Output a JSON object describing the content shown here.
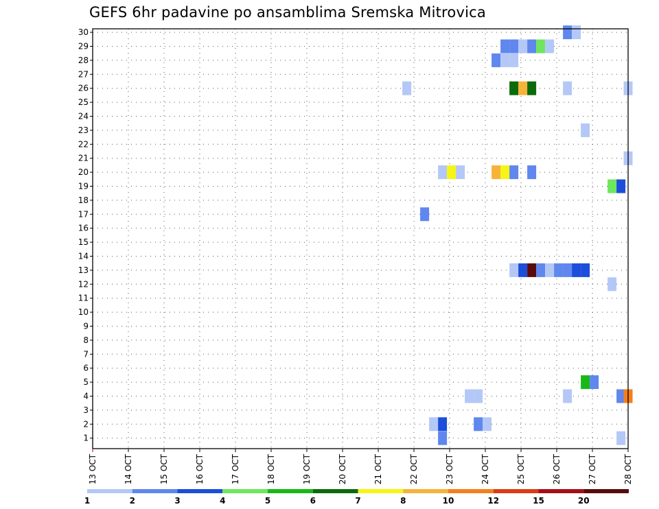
{
  "chart_data": {
    "type": "heatmap",
    "title": "GEFS 6hr padavine po ansamblima Sremska Mitrovica",
    "xlabel": "",
    "ylabel": "",
    "x_ticks": [
      "13 OCT",
      "14 OCT",
      "15 OCT",
      "16 OCT",
      "17 OCT",
      "18 OCT",
      "19 OCT",
      "20 OCT",
      "21 OCT",
      "22 OCT",
      "23 OCT",
      "24 OCT",
      "25 OCT",
      "26 OCT",
      "27 OCT",
      "28 OCT"
    ],
    "y_ticks": [
      "1",
      "2",
      "3",
      "4",
      "5",
      "6",
      "7",
      "8",
      "9",
      "10",
      "11",
      "12",
      "13",
      "14",
      "15",
      "16",
      "17",
      "18",
      "19",
      "20",
      "21",
      "22",
      "23",
      "24",
      "25",
      "26",
      "27",
      "28",
      "29",
      "30"
    ],
    "xlim": [
      0,
      15
    ],
    "ylim": [
      0.25,
      30.25
    ],
    "grid": true,
    "colorbar": {
      "labels": [
        "1",
        "2",
        "3",
        "4",
        "5",
        "6",
        "7",
        "8",
        "10",
        "12",
        "15",
        "20"
      ],
      "colors": [
        "#b4c8f7",
        "#5f87ee",
        "#1c4ddb",
        "#6ee65e",
        "#18b818",
        "#0b6b0b",
        "#f5f516",
        "#f7b23a",
        "#f47f1b",
        "#de3a14",
        "#a50f15",
        "#5a0a0a"
      ]
    },
    "cells": [
      {
        "x": 9.8,
        "y": 1.0,
        "v": 2
      },
      {
        "x": 9.8,
        "y": 2.0,
        "v": 3
      },
      {
        "x": 9.55,
        "y": 2.0,
        "v": 1
      },
      {
        "x": 10.8,
        "y": 2.0,
        "v": 2
      },
      {
        "x": 11.05,
        "y": 2.0,
        "v": 1
      },
      {
        "x": 14.8,
        "y": 1.0,
        "v": 1
      },
      {
        "x": 10.55,
        "y": 4.0,
        "v": 1
      },
      {
        "x": 10.8,
        "y": 4.0,
        "v": 1
      },
      {
        "x": 13.3,
        "y": 4.0,
        "v": 1
      },
      {
        "x": 14.8,
        "y": 4.0,
        "v": 2
      },
      {
        "x": 15.0,
        "y": 4.0,
        "v": 10
      },
      {
        "x": 13.8,
        "y": 5.0,
        "v": 5
      },
      {
        "x": 14.05,
        "y": 5.0,
        "v": 2
      },
      {
        "x": 14.55,
        "y": 12.0,
        "v": 1
      },
      {
        "x": 11.8,
        "y": 13.0,
        "v": 1
      },
      {
        "x": 12.05,
        "y": 13.0,
        "v": 3
      },
      {
        "x": 12.3,
        "y": 13.0,
        "v": 20
      },
      {
        "x": 12.55,
        "y": 13.0,
        "v": 2
      },
      {
        "x": 12.8,
        "y": 13.0,
        "v": 1
      },
      {
        "x": 13.05,
        "y": 13.0,
        "v": 2
      },
      {
        "x": 13.3,
        "y": 13.0,
        "v": 2
      },
      {
        "x": 13.55,
        "y": 13.0,
        "v": 3
      },
      {
        "x": 13.8,
        "y": 13.0,
        "v": 3
      },
      {
        "x": 9.3,
        "y": 17.0,
        "v": 2
      },
      {
        "x": 14.55,
        "y": 19.0,
        "v": 4
      },
      {
        "x": 14.8,
        "y": 19.0,
        "v": 3
      },
      {
        "x": 9.8,
        "y": 20.0,
        "v": 1
      },
      {
        "x": 10.05,
        "y": 20.0,
        "v": 7
      },
      {
        "x": 10.3,
        "y": 20.0,
        "v": 1
      },
      {
        "x": 11.3,
        "y": 20.0,
        "v": 8
      },
      {
        "x": 11.55,
        "y": 20.0,
        "v": 7
      },
      {
        "x": 11.8,
        "y": 20.0,
        "v": 2
      },
      {
        "x": 12.3,
        "y": 20.0,
        "v": 2
      },
      {
        "x": 15.0,
        "y": 21.0,
        "v": 1
      },
      {
        "x": 13.8,
        "y": 23.0,
        "v": 1
      },
      {
        "x": 8.8,
        "y": 26.0,
        "v": 1
      },
      {
        "x": 11.8,
        "y": 26.0,
        "v": 6
      },
      {
        "x": 12.05,
        "y": 26.0,
        "v": 8
      },
      {
        "x": 12.3,
        "y": 26.0,
        "v": 6
      },
      {
        "x": 13.3,
        "y": 26.0,
        "v": 1
      },
      {
        "x": 15.0,
        "y": 26.0,
        "v": 1
      },
      {
        "x": 11.3,
        "y": 28.0,
        "v": 2
      },
      {
        "x": 11.55,
        "y": 28.0,
        "v": 1
      },
      {
        "x": 11.8,
        "y": 28.0,
        "v": 1
      },
      {
        "x": 11.55,
        "y": 29.0,
        "v": 2
      },
      {
        "x": 11.8,
        "y": 29.0,
        "v": 2
      },
      {
        "x": 12.05,
        "y": 29.0,
        "v": 1
      },
      {
        "x": 12.3,
        "y": 29.0,
        "v": 2
      },
      {
        "x": 12.55,
        "y": 29.0,
        "v": 4
      },
      {
        "x": 12.8,
        "y": 29.0,
        "v": 1
      },
      {
        "x": 13.3,
        "y": 30.0,
        "v": 2
      },
      {
        "x": 13.55,
        "y": 30.0,
        "v": 1
      }
    ]
  }
}
